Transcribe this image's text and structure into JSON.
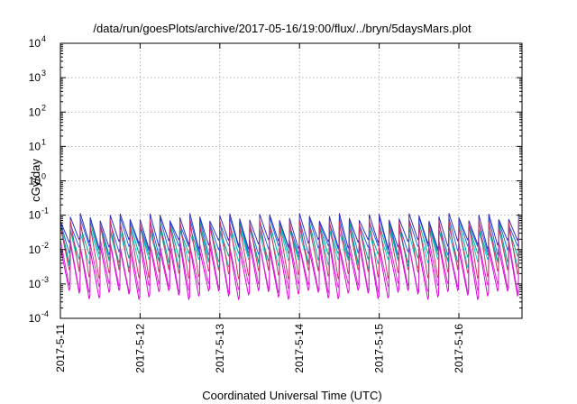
{
  "chart_data": {
    "type": "line",
    "title": "/data/run/goesPlots/archive/2017-05-16/19:00/flux/../bryn/5daysMars.plot",
    "xlabel": "Coordinated Universal Time (UTC)",
    "ylabel": "cGy/day",
    "yscale": "log",
    "ylim": [
      0.0001,
      10000
    ],
    "xlim": [
      "2017-05-11T00:00",
      "2017-05-16T19:00"
    ],
    "grid": true,
    "x_ticks": [
      "2017-5-11",
      "2017-5-12",
      "2017-5-13",
      "2017-5-14",
      "2017-5-15",
      "2017-5-16"
    ],
    "y_ticks": [
      {
        "value": 0.0001,
        "base": "10",
        "exp": "-4"
      },
      {
        "value": 0.001,
        "base": "10",
        "exp": "-3"
      },
      {
        "value": 0.01,
        "base": "10",
        "exp": "-2"
      },
      {
        "value": 0.1,
        "base": "10",
        "exp": "-1"
      },
      {
        "value": 1,
        "base": "10",
        "exp": "0"
      },
      {
        "value": 10,
        "base": "10",
        "exp": "1"
      },
      {
        "value": 100,
        "base": "10",
        "exp": "2"
      },
      {
        "value": 1000,
        "base": "10",
        "exp": "3"
      },
      {
        "value": 10000,
        "base": "10",
        "exp": "4"
      }
    ],
    "sawtooth_period_hours": 3,
    "series": [
      {
        "color": "#dd00dd",
        "peak": 0.012,
        "trough": 0.0005
      },
      {
        "color": "#cc33cc",
        "peak": 0.016,
        "trough": 0.0008
      },
      {
        "color": "#00cccc",
        "peak": 0.04,
        "trough": 0.004
      },
      {
        "color": "#00aa88",
        "peak": 0.05,
        "trough": 0.006
      },
      {
        "color": "#2266ee",
        "peak": 0.07,
        "trough": 0.01
      },
      {
        "color": "#3333bb",
        "peak": 0.09,
        "trough": 0.015
      },
      {
        "color": "#cc3366",
        "peak": 0.06,
        "trough": 0.002
      }
    ]
  }
}
